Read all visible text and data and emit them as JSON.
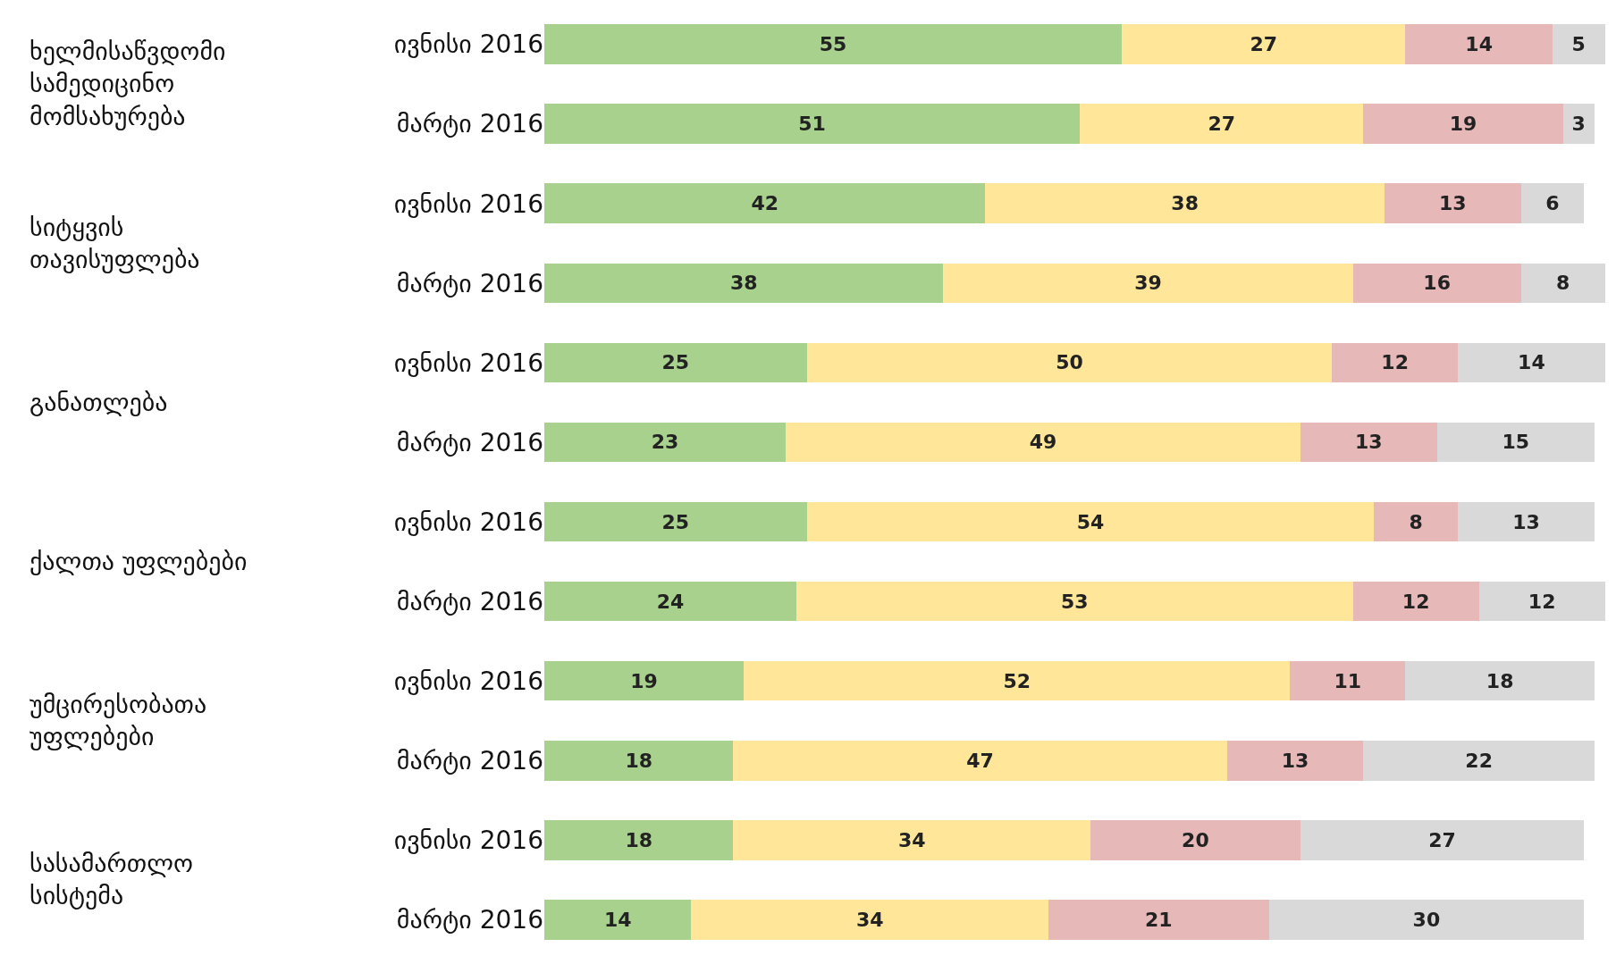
{
  "chart_data": {
    "type": "bar",
    "orientation": "horizontal",
    "stacked": true,
    "data_labels": true,
    "categories": [
      "ივნისი 2016",
      "მარტი 2016",
      "ივნისი 2016",
      "მარტი 2016",
      "ივნისი 2016",
      "მარტი 2016",
      "ივნისი 2016",
      "მარტი 2016",
      "ივნისი 2016",
      "მარტი 2016",
      "ივნისი 2016",
      "მარტი 2016"
    ],
    "annotations": [
      "ხელმისაწვდომი სამედიცინო მომსახურება",
      "სიტყვის თავისუფლება",
      "განათლება",
      "ქალთა უფლებები",
      "უმცირესობათა უფლებები",
      "სასამართლო სისტემა"
    ],
    "series": [
      {
        "color": "#a9d18e",
        "values": [
          55,
          51,
          42,
          38,
          25,
          23,
          25,
          24,
          19,
          18,
          18,
          14
        ]
      },
      {
        "color": "#ffe699",
        "values": [
          27,
          27,
          38,
          39,
          50,
          49,
          54,
          53,
          52,
          47,
          34,
          34
        ]
      },
      {
        "color": "#e6b8b7",
        "values": [
          14,
          19,
          13,
          16,
          12,
          13,
          8,
          12,
          11,
          13,
          20,
          21
        ]
      },
      {
        "color": "#d9d9d9",
        "values": [
          5,
          3,
          6,
          8,
          14,
          15,
          13,
          12,
          18,
          22,
          27,
          30
        ]
      }
    ]
  }
}
